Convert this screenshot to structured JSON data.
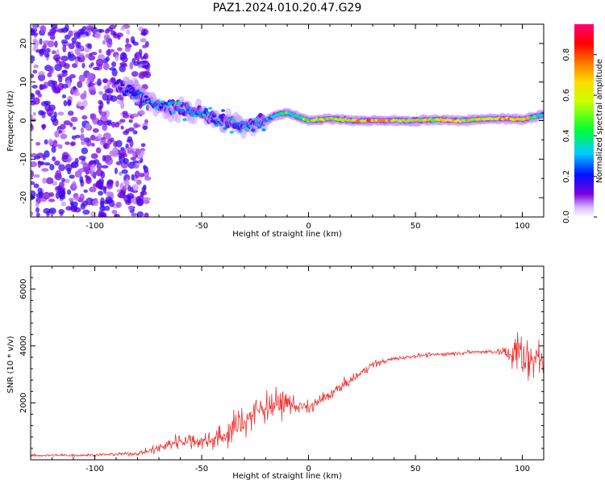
{
  "figure": {
    "title": "PAZ1.2024.010.20.47.G29"
  },
  "colors": {
    "snr_line": "#ee3333",
    "axis": "#000000",
    "background": "#ffffff"
  },
  "chart_data": [
    {
      "type": "heatmap",
      "title": "PAZ1.2024.010.20.47.G29",
      "xlabel": "Height of straight line (km)",
      "ylabel": "Frequency (Hz)",
      "xlim": [
        -130,
        110
      ],
      "ylim": [
        -25,
        25
      ],
      "xticks": [
        -100,
        -50,
        0,
        50,
        100
      ],
      "yticks": [
        -20,
        -10,
        0,
        10,
        20
      ],
      "colormap": "rainbow (violet to magenta)",
      "colorbar": {
        "label": "Normalized spectral amplitude",
        "range": [
          0,
          0.95
        ],
        "ticks": [
          "0.0",
          "0.2",
          "0.4",
          "0.6",
          "0.8"
        ]
      },
      "ridge": {
        "description": "frequency of spectral peak vs height",
        "x": [
          -90,
          -80,
          -75,
          -70,
          -60,
          -50,
          -40,
          -30,
          -25,
          -20,
          -15,
          -10,
          -5,
          0,
          10,
          20,
          30,
          40,
          50,
          60,
          70,
          80,
          90,
          100,
          110
        ],
        "frequency": [
          9,
          7,
          5,
          4,
          3,
          2,
          0,
          -1.5,
          -1,
          0,
          1.5,
          2,
          1,
          0,
          0.5,
          0,
          0,
          0,
          0,
          0.3,
          0,
          0.3,
          0.5,
          0.3,
          1.5
        ],
        "amplitude": [
          0.2,
          0.25,
          0.3,
          0.3,
          0.35,
          0.35,
          0.3,
          0.35,
          0.35,
          0.3,
          0.4,
          0.5,
          0.4,
          0.6,
          0.65,
          0.7,
          0.75,
          0.75,
          0.7,
          0.65,
          0.65,
          0.65,
          0.8,
          0.7,
          0.4
        ]
      },
      "noise_region": {
        "x_range": [
          -130,
          -75
        ],
        "frequency_range": [
          -25,
          25
        ],
        "amplitude": 0.15
      }
    },
    {
      "type": "line",
      "xlabel": "Height of straight line (km)",
      "ylabel": "SNR (10 * v/v)",
      "xlim": [
        -130,
        110
      ],
      "ylim": [
        0,
        6800
      ],
      "xticks": [
        -100,
        -50,
        0,
        50,
        100
      ],
      "yticks": [
        2000,
        4000,
        6000
      ],
      "series": [
        {
          "x": [
            -130,
            -100,
            -80,
            -70,
            -60,
            -50,
            -40,
            -35,
            -30,
            -20,
            -10,
            0,
            10,
            20,
            30,
            40,
            50,
            60,
            70,
            80,
            88,
            95,
            100,
            103,
            106,
            110
          ],
          "y": [
            150,
            170,
            220,
            400,
            700,
            650,
            800,
            1100,
            1400,
            1900,
            2000,
            1800,
            2300,
            2800,
            3350,
            3550,
            3650,
            3700,
            3750,
            3800,
            3800,
            3700,
            3800,
            3300,
            3900,
            3200
          ],
          "spread": [
            60,
            60,
            80,
            250,
            400,
            350,
            500,
            800,
            800,
            700,
            500,
            300,
            250,
            200,
            150,
            100,
            90,
            90,
            90,
            100,
            110,
            500,
            1300,
            1100,
            1000,
            600
          ]
        }
      ]
    }
  ]
}
